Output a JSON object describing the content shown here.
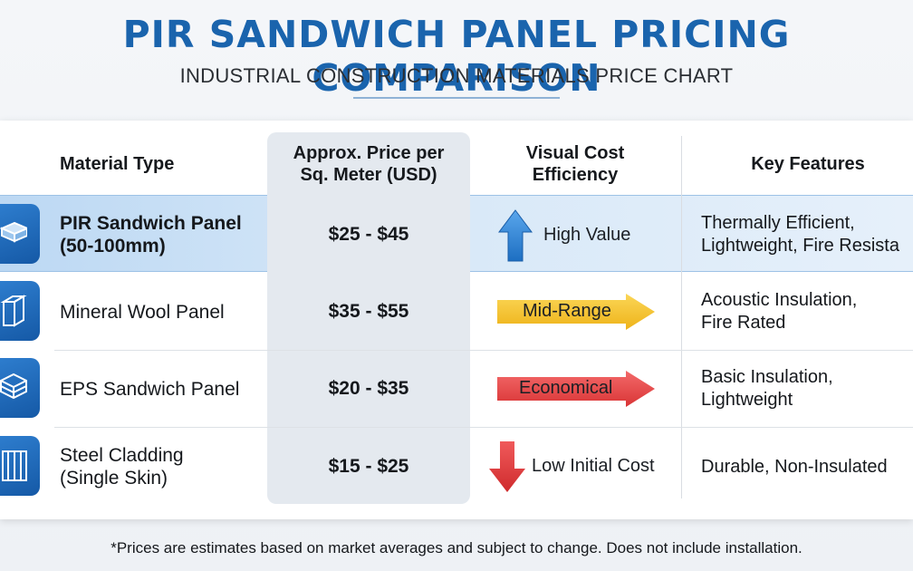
{
  "header": {
    "title": "PIR SANDWICH PANEL PRICING COMPARISON",
    "subtitle": "INDUSTRIAL CONSTRUCTION MATERIALS PRICE CHART"
  },
  "table": {
    "columns": {
      "material": "Material Type",
      "price_line1": "Approx. Price per",
      "price_line2": "Sq. Meter (USD)",
      "efficiency_line1": "Visual Cost",
      "efficiency_line2": "Efficiency",
      "features": "Key Features"
    },
    "rows": [
      {
        "icon": "panel-slab-icon",
        "name_line1": "PIR Sandwich Panel",
        "name_line2": "(50-100mm)",
        "price": "$25 - $45",
        "efficiency": "High Value",
        "efficiency_indicator": "up-arrow",
        "efficiency_color": "#2f86d6",
        "features_line1": "Thermally Efficient,",
        "features_line2": "Lightweight, Fire Resista",
        "highlighted": true
      },
      {
        "icon": "panel-box-icon",
        "name_line1": "Mineral Wool Panel",
        "price": "$35 - $55",
        "efficiency": "Mid-Range",
        "efficiency_indicator": "right-arrow",
        "efficiency_color": "#f2c12e",
        "features_line1": "Acoustic Insulation,",
        "features_line2": "Fire Rated"
      },
      {
        "icon": "layered-panel-icon",
        "name_line1": "EPS Sandwich Panel",
        "price": "$20 - $35",
        "efficiency": "Economical",
        "efficiency_indicator": "right-arrow",
        "efficiency_color": "#e5474a",
        "features_line1": "Basic Insulation,",
        "features_line2": "Lightweight"
      },
      {
        "icon": "corrugated-sheet-icon",
        "name_line1": "Steel Cladding",
        "name_line2": "(Single Skin)",
        "price": "$15 - $25",
        "efficiency": "Low Initial Cost",
        "efficiency_indicator": "down-arrow",
        "efficiency_color": "#e0393b",
        "features_line1": "Durable, Non-Insulated"
      }
    ]
  },
  "footnote": "*Prices are estimates based on market averages and subject to change. Does not include installation.",
  "colors": {
    "title": "#1a64ad",
    "icon_tile": "#1f6bbd",
    "row_highlight": "#cfe3f7"
  }
}
